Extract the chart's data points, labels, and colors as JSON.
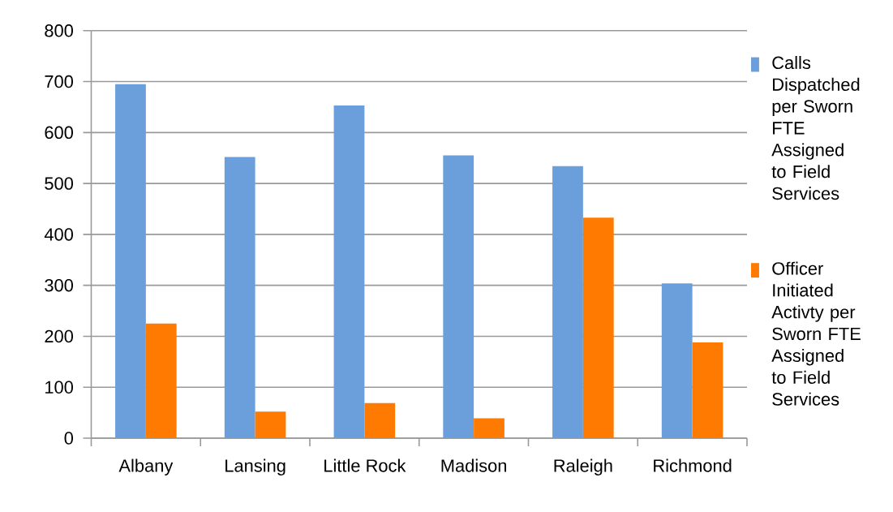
{
  "chart_data": {
    "type": "bar",
    "categories": [
      "Albany",
      "Lansing",
      "Little Rock",
      "Madison",
      "Raleigh",
      "Richmond"
    ],
    "series": [
      {
        "name": "Calls Dispatched per Sworn FTE Assigned to Field Services",
        "color": "#6a9fdb",
        "values": [
          695,
          552,
          653,
          555,
          534,
          304
        ]
      },
      {
        "name": "Officer Initiated Activty per Sworn FTE Assigned to Field Services",
        "color": "#ff7a00",
        "values": [
          225,
          52,
          69,
          39,
          433,
          188
        ]
      }
    ],
    "ylim": [
      0,
      800
    ],
    "yticks": [
      0,
      100,
      200,
      300,
      400,
      500,
      600,
      700,
      800
    ],
    "grid": "y",
    "legend": "right"
  }
}
